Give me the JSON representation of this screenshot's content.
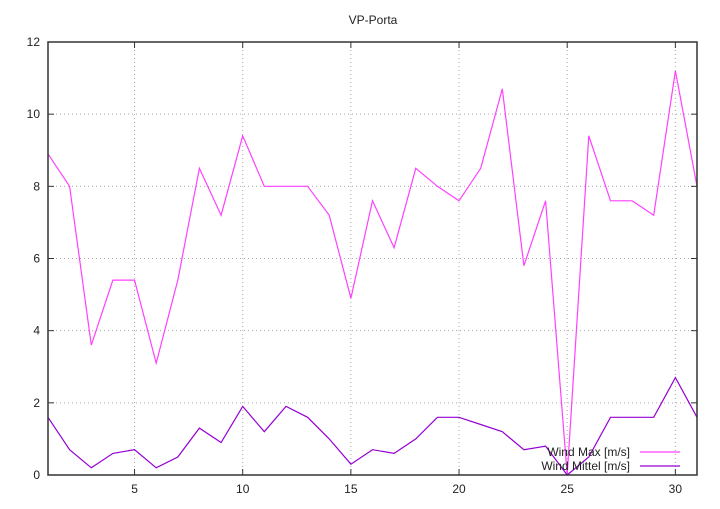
{
  "chart_data": {
    "type": "line",
    "title": "VP-Porta",
    "xlabel": "",
    "ylabel": "",
    "xlim": [
      1,
      31
    ],
    "ylim": [
      0,
      12
    ],
    "xticks": [
      5,
      10,
      15,
      20,
      25,
      30
    ],
    "yticks": [
      0,
      2,
      4,
      6,
      8,
      10,
      12
    ],
    "grid": true,
    "legend_position": "bottom-right",
    "x": [
      1,
      2,
      3,
      4,
      5,
      6,
      7,
      8,
      9,
      10,
      11,
      12,
      13,
      14,
      15,
      16,
      17,
      18,
      19,
      20,
      21,
      22,
      23,
      24,
      25,
      26,
      27,
      28,
      29,
      30,
      31
    ],
    "series": [
      {
        "name": "Wind Max [m/s]",
        "color": "#ff40ff",
        "values": [
          8.9,
          8.0,
          3.6,
          5.4,
          5.4,
          3.1,
          5.4,
          8.5,
          7.2,
          9.4,
          8.0,
          8.0,
          8.0,
          7.2,
          4.9,
          7.6,
          6.3,
          8.5,
          8.0,
          7.6,
          8.5,
          10.7,
          5.8,
          7.6,
          0.0,
          9.4,
          7.6,
          7.6,
          7.2,
          11.2,
          8.0
        ]
      },
      {
        "name": "Wind Mittel [m/s]",
        "color": "#9400d3",
        "values": [
          1.6,
          0.7,
          0.2,
          0.6,
          0.7,
          0.2,
          0.5,
          1.3,
          0.9,
          1.9,
          1.2,
          1.9,
          1.6,
          1.0,
          0.3,
          0.7,
          0.6,
          1.0,
          1.6,
          1.6,
          1.4,
          1.2,
          0.7,
          0.8,
          0.0,
          0.5,
          1.6,
          1.6,
          1.6,
          2.7,
          1.6
        ]
      }
    ]
  }
}
